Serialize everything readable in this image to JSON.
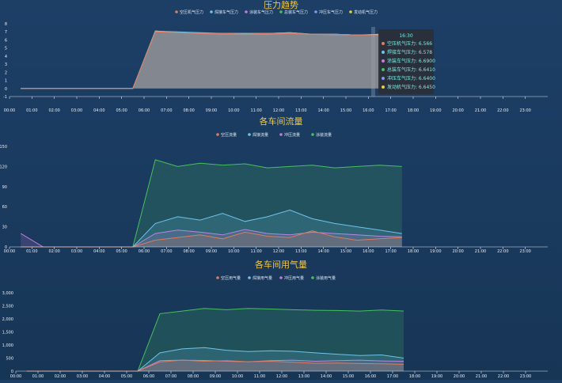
{
  "chart_data": [
    {
      "type": "area",
      "title": "压力趋势",
      "x": [
        "00:00",
        "01:00",
        "02:00",
        "03:00",
        "04:00",
        "05:00",
        "06:00",
        "07:00",
        "08:00",
        "09:00",
        "10:00",
        "11:00",
        "12:00",
        "13:00",
        "14:00",
        "15:00",
        "16:00",
        "17:00",
        "18:00",
        "19:00",
        "20:00",
        "21:00",
        "22:00",
        "23:00"
      ],
      "ylim": [
        -1,
        8
      ],
      "yticks": [
        "8",
        "7",
        "6",
        "5",
        "4",
        "3",
        "2",
        "1",
        "0",
        "-1"
      ],
      "series": [
        {
          "name": "空压机气压力",
          "color": "#e07b5b",
          "values": [
            0,
            0,
            0,
            0,
            0,
            0,
            7.0,
            6.9,
            6.8,
            6.8,
            6.7,
            6.8,
            6.8,
            6.7,
            6.7,
            6.6,
            6.6,
            null,
            null,
            null,
            null,
            null,
            null,
            null
          ]
        },
        {
          "name": "焊接车气压力",
          "color": "#6ec3e9",
          "values": [
            0,
            0,
            0,
            0,
            0,
            0,
            7.1,
            7.0,
            6.9,
            6.8,
            6.8,
            6.8,
            6.9,
            6.7,
            6.7,
            6.6,
            6.6,
            null,
            null,
            null,
            null,
            null,
            null,
            null
          ]
        },
        {
          "name": "涂装车气压力",
          "color": "#c77bd9",
          "values": [
            0,
            0,
            0,
            0,
            0,
            0,
            7.0,
            6.9,
            6.8,
            6.8,
            6.7,
            6.7,
            6.8,
            6.7,
            6.7,
            6.6,
            6.6,
            null,
            null,
            null,
            null,
            null,
            null,
            null
          ]
        },
        {
          "name": "总装车气压力",
          "color": "#46c15e",
          "values": [
            0,
            0,
            0,
            0,
            0,
            0,
            7.0,
            6.9,
            6.8,
            6.8,
            6.8,
            6.8,
            6.8,
            6.7,
            6.7,
            6.6,
            6.6,
            null,
            null,
            null,
            null,
            null,
            null,
            null
          ]
        },
        {
          "name": "冲压车气压力",
          "color": "#7c9bf0",
          "values": [
            0,
            0,
            0,
            0,
            0,
            0,
            7.0,
            6.9,
            6.8,
            6.7,
            6.7,
            6.7,
            6.8,
            6.7,
            6.6,
            6.6,
            6.6,
            null,
            null,
            null,
            null,
            null,
            null,
            null
          ]
        },
        {
          "name": "发动机气压力",
          "color": "#e5d23c",
          "values": [
            0,
            0,
            0,
            0,
            0,
            0,
            7.1,
            6.9,
            6.8,
            6.8,
            6.8,
            6.8,
            6.9,
            6.7,
            6.7,
            6.6,
            6.7,
            null,
            null,
            null,
            null,
            null,
            null,
            null
          ]
        }
      ],
      "legend": [
        "空压机气压力",
        "焊接车气压力",
        "涂装车气压力",
        "总装车气压力",
        "冲压车气压力",
        "发动机气压力"
      ],
      "legend_position": "top-center",
      "tooltip": {
        "time": "16:30",
        "rows": [
          {
            "label": "空压机气压力: 6.566",
            "color": "#e07b5b"
          },
          {
            "label": "焊接车气压力: 6.578",
            "color": "#6ec3e9"
          },
          {
            "label": "涂装车气压力: 6.6900",
            "color": "#c77bd9"
          },
          {
            "label": "总装车气压力: 6.6410",
            "color": "#46c15e"
          },
          {
            "label": "冲压车气压力: 6.6400",
            "color": "#7c9bf0"
          },
          {
            "label": "发动机气压力: 6.6450",
            "color": "#e5d23c"
          }
        ]
      }
    },
    {
      "type": "area",
      "title": "各车间流量",
      "x": [
        "00:00",
        "01:00",
        "02:00",
        "03:00",
        "04:00",
        "05:00",
        "06:00",
        "07:00",
        "08:00",
        "09:00",
        "10:00",
        "11:00",
        "12:00",
        "13:00",
        "14:00",
        "15:00",
        "16:00",
        "17:00",
        "18:00",
        "19:00",
        "20:00",
        "21:00",
        "22:00",
        "23:00"
      ],
      "ylim": [
        0,
        150
      ],
      "yticks": [
        "150",
        "120",
        "90",
        "60",
        "30",
        "0"
      ],
      "series": [
        {
          "name": "空压流量",
          "color": "#e07b5b",
          "values": [
            0,
            0,
            0,
            0,
            0,
            0,
            10,
            14,
            18,
            12,
            22,
            16,
            14,
            24,
            15,
            10,
            12,
            14,
            null,
            null,
            null,
            null,
            null,
            null
          ]
        },
        {
          "name": "焊接流量",
          "color": "#6ec3e9",
          "values": [
            0,
            0,
            0,
            0,
            0,
            0,
            35,
            45,
            40,
            50,
            38,
            45,
            55,
            42,
            35,
            30,
            25,
            20,
            null,
            null,
            null,
            null,
            null,
            null
          ]
        },
        {
          "name": "冲压流量",
          "color": "#c77bd9",
          "values": [
            20,
            0,
            0,
            0,
            0,
            0,
            20,
            25,
            22,
            18,
            26,
            20,
            18,
            22,
            20,
            18,
            16,
            15,
            null,
            null,
            null,
            null,
            null,
            null
          ]
        },
        {
          "name": "涂装流量",
          "color": "#46c15e",
          "values": [
            0,
            0,
            0,
            0,
            0,
            0,
            130,
            120,
            125,
            122,
            124,
            118,
            120,
            122,
            118,
            120,
            122,
            120,
            null,
            null,
            null,
            null,
            null,
            null
          ]
        }
      ],
      "legend": [
        "空压流量",
        "焊接流量",
        "冲压流量",
        "涂装流量"
      ],
      "legend_position": "top-center"
    },
    {
      "type": "area",
      "title": "各车间用气量",
      "x": [
        "00:00",
        "01:00",
        "02:00",
        "03:00",
        "04:00",
        "05:00",
        "06:00",
        "07:00",
        "08:00",
        "09:00",
        "10:00",
        "11:00",
        "12:00",
        "13:00",
        "14:00",
        "15:00",
        "16:00",
        "17:00",
        "18:00",
        "19:00",
        "20:00",
        "21:00",
        "22:00",
        "23:00"
      ],
      "ylim": [
        0,
        3000
      ],
      "yticks": [
        "3,000",
        "2,500",
        "2,000",
        "1,500",
        "1,000",
        "500",
        "0"
      ],
      "series": [
        {
          "name": "空压用气量",
          "color": "#e07b5b",
          "values": [
            0,
            0,
            0,
            0,
            0,
            0,
            350,
            420,
            380,
            400,
            360,
            380,
            340,
            300,
            310,
            290,
            280,
            260,
            null,
            null,
            null,
            null,
            null,
            null
          ]
        },
        {
          "name": "焊接用气量",
          "color": "#6ec3e9",
          "values": [
            0,
            0,
            0,
            0,
            0,
            0,
            700,
            850,
            900,
            800,
            750,
            780,
            760,
            700,
            650,
            600,
            620,
            500,
            null,
            null,
            null,
            null,
            null,
            null
          ]
        },
        {
          "name": "冲压用气量",
          "color": "#c77bd9",
          "values": [
            0,
            0,
            0,
            0,
            0,
            0,
            400,
            420,
            410,
            380,
            360,
            400,
            420,
            380,
            400,
            420,
            390,
            380,
            null,
            null,
            null,
            null,
            null,
            null
          ]
        },
        {
          "name": "涂装用气量",
          "color": "#46c15e",
          "values": [
            0,
            0,
            0,
            0,
            0,
            0,
            2200,
            2300,
            2400,
            2350,
            2400,
            2380,
            2350,
            2330,
            2320,
            2300,
            2340,
            2300,
            null,
            null,
            null,
            null,
            null,
            null
          ]
        }
      ],
      "legend": [
        "空压用气量",
        "焊接用气量",
        "冲压用气量",
        "涂装用气量"
      ],
      "legend_position": "top-center"
    }
  ]
}
